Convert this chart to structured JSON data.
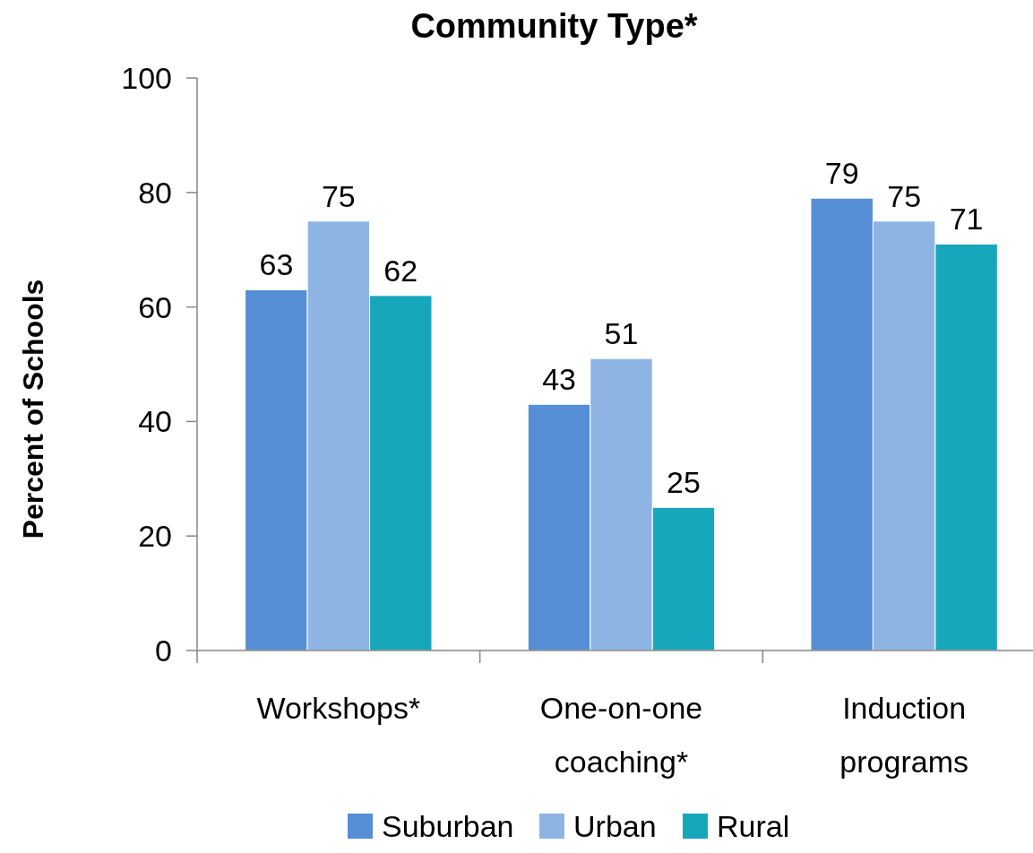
{
  "chart_data": {
    "type": "bar",
    "title": "Community Type*",
    "ylabel": "Percent of Schools",
    "categories": [
      "Workshops*",
      "One-on-one coaching*",
      "Induction programs"
    ],
    "series": [
      {
        "name": "Suburban",
        "color": "#558ed5",
        "values": [
          63,
          43,
          79
        ]
      },
      {
        "name": "Urban",
        "color": "#8eb4e3",
        "values": [
          75,
          51,
          75
        ]
      },
      {
        "name": "Rural",
        "color": "#17a7bb",
        "values": [
          62,
          25,
          71
        ]
      }
    ],
    "ylim": [
      0,
      100
    ],
    "yticks": [
      0,
      20,
      40,
      60,
      80,
      100
    ],
    "grid": false,
    "legend": "bottom",
    "data_labels": true
  }
}
